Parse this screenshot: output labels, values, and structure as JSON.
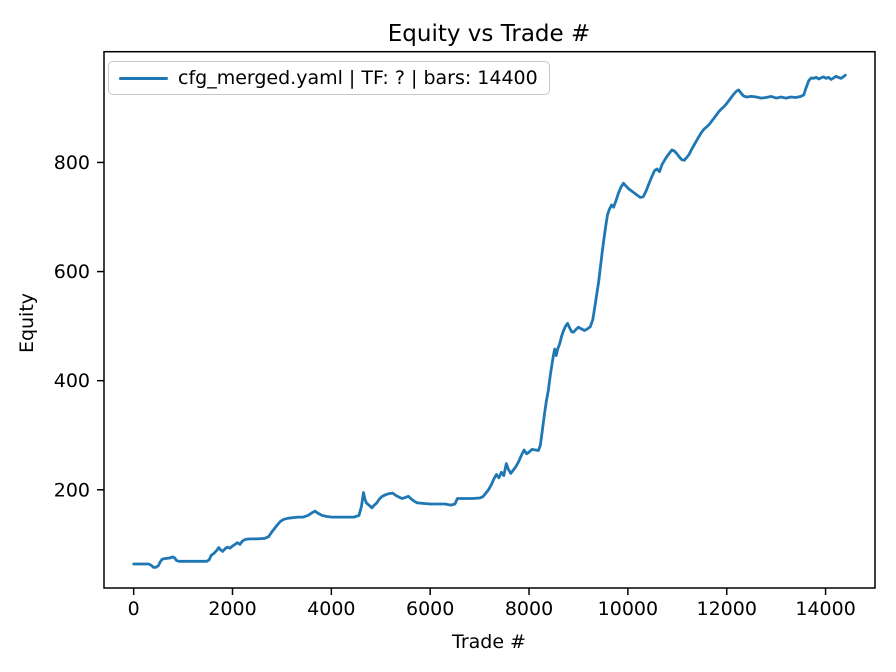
{
  "figure": {
    "background": "#ffffff"
  },
  "colors": {
    "line": "#1f77b4",
    "spine": "#000000",
    "text": "#000000",
    "legend_border": "#c9c9c9"
  },
  "chart_data": {
    "type": "line",
    "title": "Equity vs Trade #",
    "xlabel": "Trade #",
    "ylabel": "Equity",
    "xlim": [
      -600,
      15000
    ],
    "ylim": [
      20,
      1003
    ],
    "x_ticks": [
      0,
      2000,
      4000,
      6000,
      8000,
      10000,
      12000,
      14000
    ],
    "y_ticks": [
      200,
      400,
      600,
      800
    ],
    "grid": false,
    "legend": {
      "position": "upper-left",
      "entries": [
        {
          "label": "cfg_merged.yaml | TF: ? | bars: 14400",
          "color": "#1f77b4"
        }
      ]
    },
    "series": [
      {
        "name": "cfg_merged.yaml | TF: ? | bars: 14400",
        "color": "#1f77b4",
        "points": [
          [
            0,
            64
          ],
          [
            150,
            64
          ],
          [
            300,
            64
          ],
          [
            350,
            62
          ],
          [
            400,
            58
          ],
          [
            450,
            58
          ],
          [
            500,
            61
          ],
          [
            540,
            68
          ],
          [
            580,
            73
          ],
          [
            650,
            74
          ],
          [
            730,
            75
          ],
          [
            790,
            77
          ],
          [
            830,
            75
          ],
          [
            870,
            70
          ],
          [
            920,
            69
          ],
          [
            1050,
            69
          ],
          [
            1200,
            69
          ],
          [
            1350,
            69
          ],
          [
            1480,
            69
          ],
          [
            1530,
            72
          ],
          [
            1570,
            80
          ],
          [
            1620,
            83
          ],
          [
            1680,
            89
          ],
          [
            1720,
            94
          ],
          [
            1760,
            90
          ],
          [
            1800,
            87
          ],
          [
            1850,
            92
          ],
          [
            1900,
            95
          ],
          [
            1950,
            93
          ],
          [
            2000,
            97
          ],
          [
            2050,
            100
          ],
          [
            2100,
            103
          ],
          [
            2150,
            100
          ],
          [
            2200,
            106
          ],
          [
            2260,
            109
          ],
          [
            2350,
            110
          ],
          [
            2500,
            110
          ],
          [
            2650,
            111
          ],
          [
            2730,
            114
          ],
          [
            2790,
            122
          ],
          [
            2850,
            129
          ],
          [
            2910,
            136
          ],
          [
            2970,
            142
          ],
          [
            3040,
            146
          ],
          [
            3130,
            148
          ],
          [
            3230,
            149
          ],
          [
            3330,
            150
          ],
          [
            3430,
            150
          ],
          [
            3530,
            153
          ],
          [
            3610,
            158
          ],
          [
            3670,
            161
          ],
          [
            3730,
            157
          ],
          [
            3810,
            153
          ],
          [
            3910,
            151
          ],
          [
            4010,
            150
          ],
          [
            4160,
            150
          ],
          [
            4310,
            150
          ],
          [
            4460,
            150
          ],
          [
            4560,
            153
          ],
          [
            4610,
            170
          ],
          [
            4650,
            195
          ],
          [
            4680,
            182
          ],
          [
            4710,
            176
          ],
          [
            4760,
            172
          ],
          [
            4820,
            167
          ],
          [
            4870,
            172
          ],
          [
            4920,
            176
          ],
          [
            4970,
            183
          ],
          [
            5030,
            188
          ],
          [
            5100,
            191
          ],
          [
            5170,
            193
          ],
          [
            5240,
            194
          ],
          [
            5300,
            190
          ],
          [
            5360,
            187
          ],
          [
            5430,
            184
          ],
          [
            5500,
            186
          ],
          [
            5560,
            188
          ],
          [
            5620,
            183
          ],
          [
            5680,
            179
          ],
          [
            5740,
            176
          ],
          [
            5850,
            175
          ],
          [
            6000,
            174
          ],
          [
            6150,
            174
          ],
          [
            6300,
            174
          ],
          [
            6420,
            172
          ],
          [
            6500,
            174
          ],
          [
            6550,
            184
          ],
          [
            6700,
            184
          ],
          [
            6850,
            184
          ],
          [
            7000,
            185
          ],
          [
            7060,
            187
          ],
          [
            7120,
            193
          ],
          [
            7180,
            200
          ],
          [
            7240,
            210
          ],
          [
            7290,
            220
          ],
          [
            7340,
            228
          ],
          [
            7390,
            222
          ],
          [
            7440,
            232
          ],
          [
            7490,
            226
          ],
          [
            7540,
            248
          ],
          [
            7580,
            238
          ],
          [
            7630,
            230
          ],
          [
            7680,
            236
          ],
          [
            7730,
            242
          ],
          [
            7790,
            252
          ],
          [
            7850,
            264
          ],
          [
            7900,
            273
          ],
          [
            7950,
            266
          ],
          [
            8000,
            269
          ],
          [
            8060,
            274
          ],
          [
            8130,
            273
          ],
          [
            8190,
            272
          ],
          [
            8230,
            282
          ],
          [
            8270,
            310
          ],
          [
            8310,
            338
          ],
          [
            8350,
            362
          ],
          [
            8390,
            382
          ],
          [
            8430,
            410
          ],
          [
            8460,
            428
          ],
          [
            8490,
            445
          ],
          [
            8520,
            458
          ],
          [
            8550,
            446
          ],
          [
            8580,
            458
          ],
          [
            8620,
            468
          ],
          [
            8660,
            482
          ],
          [
            8700,
            492
          ],
          [
            8740,
            500
          ],
          [
            8780,
            505
          ],
          [
            8820,
            497
          ],
          [
            8860,
            490
          ],
          [
            8900,
            489
          ],
          [
            8950,
            494
          ],
          [
            9000,
            498
          ],
          [
            9060,
            495
          ],
          [
            9120,
            492
          ],
          [
            9180,
            495
          ],
          [
            9240,
            499
          ],
          [
            9290,
            512
          ],
          [
            9330,
            535
          ],
          [
            9370,
            558
          ],
          [
            9410,
            582
          ],
          [
            9440,
            605
          ],
          [
            9470,
            628
          ],
          [
            9500,
            650
          ],
          [
            9530,
            670
          ],
          [
            9560,
            688
          ],
          [
            9590,
            705
          ],
          [
            9630,
            715
          ],
          [
            9670,
            722
          ],
          [
            9710,
            718
          ],
          [
            9760,
            730
          ],
          [
            9810,
            744
          ],
          [
            9860,
            755
          ],
          [
            9910,
            762
          ],
          [
            9960,
            757
          ],
          [
            10010,
            752
          ],
          [
            10070,
            748
          ],
          [
            10130,
            744
          ],
          [
            10190,
            740
          ],
          [
            10250,
            736
          ],
          [
            10310,
            737
          ],
          [
            10370,
            748
          ],
          [
            10430,
            762
          ],
          [
            10490,
            775
          ],
          [
            10540,
            785
          ],
          [
            10590,
            788
          ],
          [
            10640,
            783
          ],
          [
            10690,
            796
          ],
          [
            10740,
            804
          ],
          [
            10790,
            811
          ],
          [
            10840,
            817
          ],
          [
            10890,
            823
          ],
          [
            10940,
            821
          ],
          [
            10990,
            816
          ],
          [
            11040,
            810
          ],
          [
            11090,
            805
          ],
          [
            11140,
            804
          ],
          [
            11190,
            809
          ],
          [
            11240,
            815
          ],
          [
            11290,
            824
          ],
          [
            11340,
            832
          ],
          [
            11390,
            840
          ],
          [
            11440,
            848
          ],
          [
            11490,
            855
          ],
          [
            11540,
            861
          ],
          [
            11590,
            865
          ],
          [
            11640,
            869
          ],
          [
            11690,
            875
          ],
          [
            11740,
            881
          ],
          [
            11790,
            887
          ],
          [
            11840,
            893
          ],
          [
            11890,
            898
          ],
          [
            11940,
            902
          ],
          [
            11990,
            907
          ],
          [
            12040,
            913
          ],
          [
            12090,
            919
          ],
          [
            12140,
            925
          ],
          [
            12190,
            930
          ],
          [
            12240,
            933
          ],
          [
            12290,
            927
          ],
          [
            12340,
            922
          ],
          [
            12400,
            920
          ],
          [
            12500,
            921
          ],
          [
            12600,
            920
          ],
          [
            12700,
            918
          ],
          [
            12800,
            919
          ],
          [
            12900,
            921
          ],
          [
            13000,
            918
          ],
          [
            13100,
            920
          ],
          [
            13200,
            918
          ],
          [
            13300,
            920
          ],
          [
            13400,
            919
          ],
          [
            13500,
            921
          ],
          [
            13560,
            924
          ],
          [
            13610,
            938
          ],
          [
            13660,
            950
          ],
          [
            13710,
            955
          ],
          [
            13760,
            954
          ],
          [
            13810,
            956
          ],
          [
            13860,
            953
          ],
          [
            13910,
            955
          ],
          [
            13960,
            957
          ],
          [
            14010,
            954
          ],
          [
            14060,
            956
          ],
          [
            14110,
            952
          ],
          [
            14160,
            955
          ],
          [
            14210,
            958
          ],
          [
            14260,
            956
          ],
          [
            14310,
            954
          ],
          [
            14360,
            957
          ],
          [
            14400,
            960
          ]
        ]
      }
    ]
  }
}
